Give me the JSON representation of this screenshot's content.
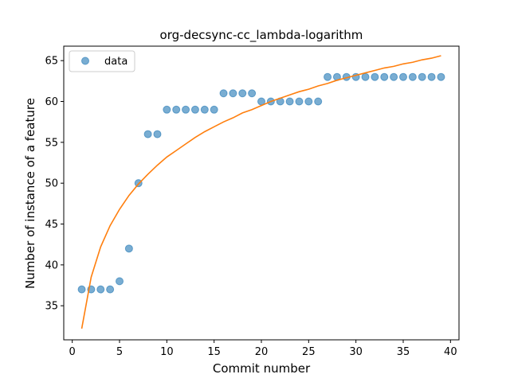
{
  "chart_data": {
    "type": "scatter",
    "title": "org-decsync-cc_lambda-logarithm",
    "xlabel": "Commit number",
    "ylabel": "Number of instance of a feature",
    "xlim": [
      -0.9,
      40.9
    ],
    "ylim": [
      30.83,
      66.77
    ],
    "xticks": [
      0,
      5,
      10,
      15,
      20,
      25,
      30,
      35,
      40
    ],
    "yticks": [
      35,
      40,
      45,
      50,
      55,
      60,
      65
    ],
    "grid": false,
    "legend": {
      "placement": "top-left",
      "entries": [
        "data"
      ]
    },
    "colors": {
      "points": "#1f77b4",
      "fit": "#ff7f0e"
    },
    "series": [
      {
        "name": "data",
        "kind": "scatter",
        "x": [
          1,
          2,
          3,
          4,
          5,
          6,
          7,
          8,
          9,
          10,
          11,
          12,
          13,
          14,
          15,
          16,
          17,
          18,
          19,
          20,
          21,
          22,
          23,
          24,
          25,
          26,
          27,
          28,
          29,
          30,
          31,
          32,
          33,
          34,
          35,
          36,
          37,
          38,
          39
        ],
        "y": [
          37,
          37,
          37,
          37,
          38,
          42,
          50,
          56,
          56,
          59,
          59,
          59,
          59,
          59,
          59,
          61,
          61,
          61,
          61,
          60,
          60,
          60,
          60,
          60,
          60,
          60,
          63,
          63,
          63,
          63,
          63,
          63,
          63,
          63,
          63,
          63,
          63,
          63,
          63
        ]
      },
      {
        "kind": "line",
        "x": [
          1,
          2,
          3,
          4,
          5,
          6,
          7,
          8,
          9,
          10,
          11,
          12,
          13,
          14,
          15,
          16,
          17,
          18,
          19,
          20,
          21,
          22,
          23,
          24,
          25,
          26,
          27,
          28,
          29,
          30,
          31,
          32,
          33,
          34,
          35,
          36,
          37,
          38,
          39
        ],
        "y": [
          32.2,
          38.5,
          42.2,
          44.8,
          46.8,
          48.5,
          49.9,
          51.1,
          52.2,
          53.2,
          54.0,
          54.8,
          55.6,
          56.3,
          56.9,
          57.5,
          58.0,
          58.6,
          59.0,
          59.5,
          60.0,
          60.4,
          60.8,
          61.2,
          61.5,
          61.9,
          62.2,
          62.6,
          62.9,
          63.2,
          63.5,
          63.8,
          64.1,
          64.3,
          64.6,
          64.8,
          65.1,
          65.3,
          65.6
        ]
      }
    ]
  }
}
